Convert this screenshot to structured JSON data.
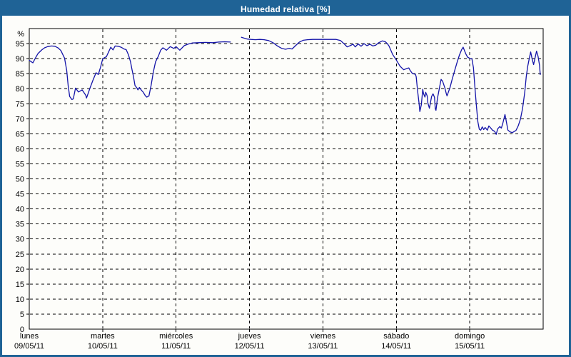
{
  "window": {
    "title": "Humedad relativa [%]"
  },
  "colors": {
    "titlebar_bg": "#1f6396",
    "titlebar_text": "#ffffff",
    "window_border": "#1f6396",
    "chart_bg": "#fdfdfa",
    "axis": "#000000",
    "grid": "#000000",
    "line": "#1414a8"
  },
  "chart_data": {
    "type": "line",
    "title": "Humedad relativa [%]",
    "grid": "dashed",
    "legend": "none",
    "y_axis": {
      "unit_label": "%",
      "min": 0,
      "max": 100,
      "tick_step": 5,
      "tick_labels": [
        "0",
        "5",
        "10",
        "15",
        "20",
        "25",
        "30",
        "35",
        "40",
        "45",
        "50",
        "55",
        "60",
        "65",
        "70",
        "75",
        "80",
        "85",
        "90",
        "95"
      ]
    },
    "x_axis": {
      "days": [
        {
          "name": "lunes",
          "date": "09/05/11"
        },
        {
          "name": "martes",
          "date": "10/05/11"
        },
        {
          "name": "miércoles",
          "date": "11/05/11"
        },
        {
          "name": "jueves",
          "date": "12/05/11"
        },
        {
          "name": "viernes",
          "date": "13/05/11"
        },
        {
          "name": "sábado",
          "date": "14/05/11"
        },
        {
          "name": "domingo",
          "date": "15/05/11"
        }
      ]
    },
    "series": [
      {
        "name": "Humedad relativa [%]",
        "color": "#1414a8",
        "x_unit": "days since 09/05/11 00:00",
        "segments": [
          [
            [
              0.0,
              89.4
            ],
            [
              0.03,
              88.9
            ],
            [
              0.05,
              88.6
            ],
            [
              0.09,
              90.5
            ],
            [
              0.12,
              91.7
            ],
            [
              0.17,
              92.9
            ],
            [
              0.21,
              93.6
            ],
            [
              0.25,
              94.0
            ],
            [
              0.3,
              94.2
            ],
            [
              0.35,
              94.1
            ],
            [
              0.39,
              93.6
            ],
            [
              0.43,
              92.7
            ],
            [
              0.48,
              90.2
            ],
            [
              0.51,
              86.0
            ],
            [
              0.53,
              81.0
            ],
            [
              0.55,
              77.4
            ],
            [
              0.58,
              76.4
            ],
            [
              0.6,
              76.6
            ],
            [
              0.63,
              80.2
            ],
            [
              0.67,
              78.9
            ],
            [
              0.72,
              79.6
            ],
            [
              0.77,
              77.8
            ],
            [
              0.78,
              76.9
            ],
            [
              0.83,
              80.4
            ],
            [
              0.87,
              83.0
            ],
            [
              0.91,
              85.3
            ],
            [
              0.94,
              84.7
            ],
            [
              0.97,
              87.1
            ],
            [
              1.0,
              89.9
            ],
            [
              1.03,
              90.4
            ],
            [
              1.05,
              90.6
            ],
            [
              1.08,
              92.2
            ],
            [
              1.11,
              93.8
            ],
            [
              1.14,
              92.9
            ],
            [
              1.17,
              94.2
            ],
            [
              1.21,
              94.1
            ],
            [
              1.25,
              93.8
            ],
            [
              1.29,
              93.2
            ],
            [
              1.32,
              93.0
            ],
            [
              1.35,
              91.3
            ],
            [
              1.38,
              88.9
            ],
            [
              1.4,
              86.3
            ],
            [
              1.42,
              83.9
            ],
            [
              1.44,
              81.1
            ],
            [
              1.47,
              80.1
            ],
            [
              1.48,
              79.6
            ],
            [
              1.5,
              80.4
            ],
            [
              1.53,
              79.4
            ],
            [
              1.55,
              78.9
            ],
            [
              1.58,
              77.7
            ],
            [
              1.6,
              77.2
            ],
            [
              1.63,
              77.6
            ],
            [
              1.66,
              81.1
            ],
            [
              1.69,
              85.5
            ],
            [
              1.72,
              88.9
            ],
            [
              1.76,
              90.9
            ],
            [
              1.79,
              92.8
            ],
            [
              1.82,
              93.6
            ],
            [
              1.87,
              92.8
            ],
            [
              1.92,
              94.0
            ],
            [
              1.97,
              93.4
            ],
            [
              2.0,
              94.0
            ],
            [
              2.05,
              92.8
            ],
            [
              2.11,
              94.3
            ],
            [
              2.16,
              94.8
            ],
            [
              2.22,
              95.2
            ],
            [
              2.3,
              95.3
            ],
            [
              2.4,
              95.4
            ],
            [
              2.5,
              95.3
            ],
            [
              2.58,
              95.5
            ],
            [
              2.66,
              95.6
            ],
            [
              2.74,
              95.5
            ]
          ],
          [
            [
              2.89,
              97.1
            ],
            [
              2.93,
              96.8
            ],
            [
              2.97,
              96.5
            ],
            [
              3.02,
              96.4
            ],
            [
              3.08,
              96.3
            ],
            [
              3.14,
              96.4
            ],
            [
              3.2,
              96.3
            ],
            [
              3.26,
              96.0
            ],
            [
              3.32,
              95.3
            ],
            [
              3.38,
              94.2
            ],
            [
              3.44,
              93.4
            ],
            [
              3.49,
              93.1
            ],
            [
              3.54,
              93.4
            ],
            [
              3.58,
              93.2
            ],
            [
              3.63,
              94.4
            ],
            [
              3.68,
              95.5
            ],
            [
              3.73,
              96.1
            ],
            [
              3.79,
              96.3
            ],
            [
              3.86,
              96.4
            ],
            [
              3.94,
              96.4
            ],
            [
              4.02,
              96.4
            ],
            [
              4.1,
              96.4
            ],
            [
              4.18,
              96.4
            ],
            [
              4.24,
              96.0
            ],
            [
              4.29,
              94.9
            ],
            [
              4.33,
              93.9
            ],
            [
              4.37,
              94.3
            ],
            [
              4.41,
              94.8
            ],
            [
              4.44,
              93.9
            ],
            [
              4.48,
              94.9
            ],
            [
              4.52,
              94.1
            ],
            [
              4.56,
              95.0
            ],
            [
              4.6,
              94.3
            ],
            [
              4.64,
              94.8
            ],
            [
              4.68,
              94.2
            ],
            [
              4.72,
              94.5
            ],
            [
              4.76,
              95.3
            ],
            [
              4.81,
              95.9
            ],
            [
              4.85,
              95.6
            ],
            [
              4.88,
              94.9
            ],
            [
              4.9,
              94.2
            ],
            [
              4.95,
              91.4
            ],
            [
              5.0,
              89.5
            ],
            [
              5.05,
              87.5
            ],
            [
              5.1,
              86.3
            ],
            [
              5.15,
              86.8
            ],
            [
              5.17,
              86.9
            ],
            [
              5.19,
              86.0
            ],
            [
              5.22,
              85.0
            ],
            [
              5.26,
              84.8
            ],
            [
              5.27,
              84.0
            ],
            [
              5.29,
              79.2
            ],
            [
              5.31,
              75.0
            ],
            [
              5.32,
              72.4
            ],
            [
              5.34,
              74.6
            ],
            [
              5.36,
              79.8
            ],
            [
              5.37,
              78.4
            ],
            [
              5.39,
              77.2
            ],
            [
              5.4,
              78.8
            ],
            [
              5.42,
              77.6
            ],
            [
              5.43,
              75.2
            ],
            [
              5.45,
              73.5
            ],
            [
              5.47,
              76.0
            ],
            [
              5.48,
              77.4
            ],
            [
              5.5,
              78.3
            ],
            [
              5.52,
              77.1
            ],
            [
              5.53,
              73.4
            ],
            [
              5.54,
              72.8
            ],
            [
              5.56,
              76.8
            ],
            [
              5.6,
              81.9
            ],
            [
              5.61,
              83.1
            ],
            [
              5.63,
              82.5
            ],
            [
              5.66,
              80.3
            ],
            [
              5.68,
              78.4
            ],
            [
              5.69,
              77.6
            ],
            [
              5.73,
              80.3
            ],
            [
              5.76,
              83.1
            ],
            [
              5.8,
              86.5
            ],
            [
              5.83,
              89.0
            ],
            [
              5.86,
              91.2
            ],
            [
              5.89,
              93.0
            ],
            [
              5.91,
              93.8
            ],
            [
              5.93,
              92.6
            ],
            [
              5.95,
              91.4
            ],
            [
              5.97,
              90.5
            ],
            [
              6.0,
              90.1
            ],
            [
              6.03,
              89.9
            ],
            [
              6.05,
              87.0
            ],
            [
              6.07,
              80.7
            ],
            [
              6.09,
              74.5
            ],
            [
              6.11,
              69.0
            ],
            [
              6.13,
              66.5
            ],
            [
              6.15,
              66.2
            ],
            [
              6.17,
              67.3
            ],
            [
              6.19,
              66.4
            ],
            [
              6.21,
              67.1
            ],
            [
              6.24,
              66.2
            ],
            [
              6.26,
              67.6
            ],
            [
              6.29,
              66.8
            ],
            [
              6.31,
              66.2
            ],
            [
              6.34,
              65.8
            ],
            [
              6.36,
              64.8
            ],
            [
              6.38,
              66.6
            ],
            [
              6.41,
              67.4
            ],
            [
              6.43,
              66.9
            ],
            [
              6.45,
              68.4
            ],
            [
              6.48,
              71.4
            ],
            [
              6.5,
              68.8
            ],
            [
              6.52,
              66.2
            ],
            [
              6.55,
              65.6
            ],
            [
              6.58,
              65.4
            ],
            [
              6.6,
              65.7
            ],
            [
              6.63,
              66.1
            ],
            [
              6.66,
              67.6
            ],
            [
              6.69,
              69.8
            ],
            [
              6.72,
              73.5
            ],
            [
              6.75,
              79.0
            ],
            [
              6.77,
              84.0
            ],
            [
              6.79,
              87.5
            ],
            [
              6.81,
              90.0
            ],
            [
              6.83,
              92.2
            ],
            [
              6.85,
              89.8
            ],
            [
              6.87,
              88.0
            ],
            [
              6.89,
              90.3
            ],
            [
              6.91,
              92.5
            ],
            [
              6.93,
              90.8
            ],
            [
              6.95,
              87.8
            ],
            [
              6.96,
              84.7
            ]
          ]
        ]
      }
    ]
  }
}
